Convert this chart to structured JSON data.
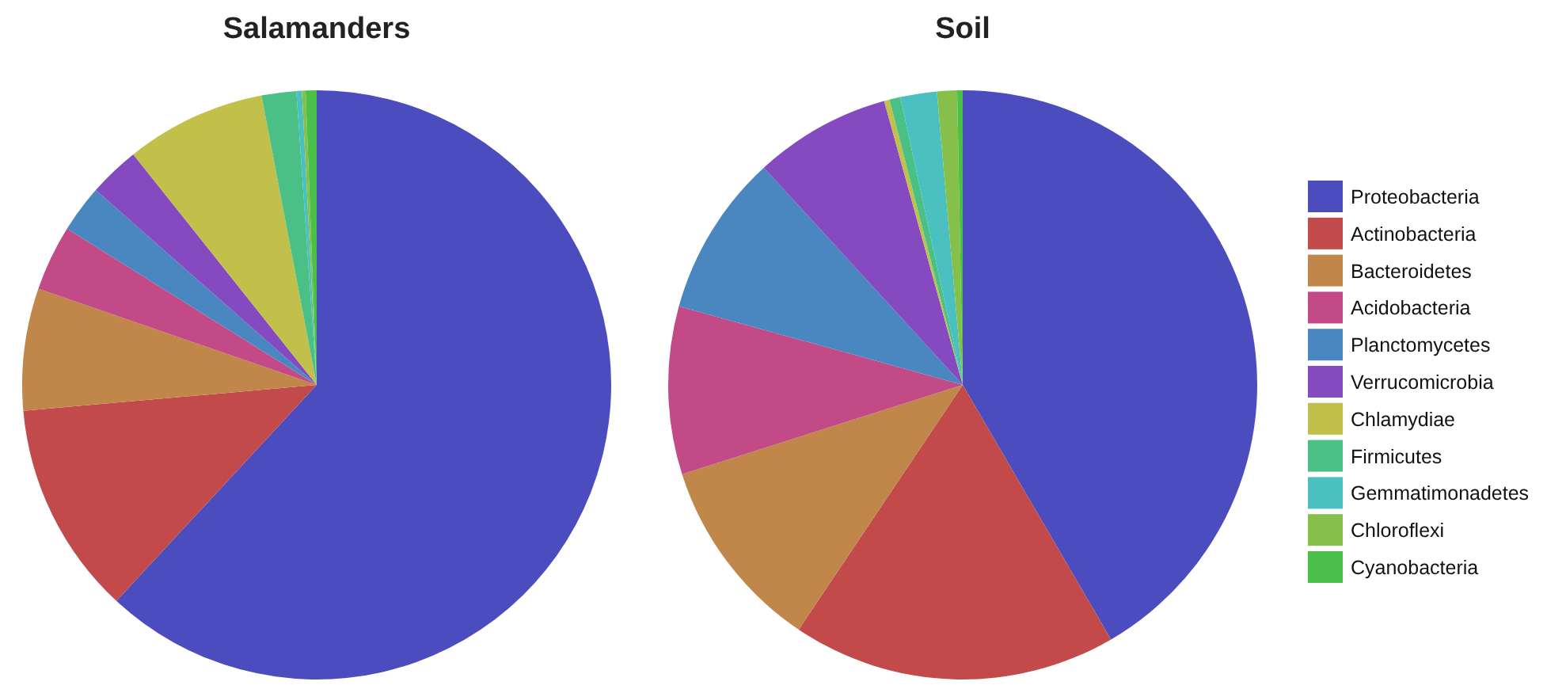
{
  "chart_data": [
    {
      "type": "pie",
      "title": "Salamanders",
      "legend": false,
      "values": [
        61.9,
        11.7,
        6.7,
        3.6,
        2.6,
        2.8,
        7.7,
        1.9,
        0.3,
        0.2,
        0.6
      ],
      "colors": [
        "#4b4dbf",
        "#c24a4a",
        "#c0864a",
        "#c24a86",
        "#4a86c0",
        "#864ac0",
        "#c0c04a",
        "#4ac086",
        "#4ac0c0",
        "#86c04a",
        "#4ac04a"
      ]
    },
    {
      "type": "pie",
      "title": "Soil",
      "legend": "right",
      "categories": [
        "Proteobacteria",
        "Actinobacteria",
        "Bacteroidetes",
        "Acidobacteria",
        "Planctomycetes",
        "Verrucomicrobia",
        "Chlamydiae",
        "Firmicutes",
        "Gemmatimonadetes",
        "Chloroflexi",
        "Cyanobacteria"
      ],
      "values": [
        41.6,
        17.8,
        10.7,
        9.2,
        8.9,
        7.5,
        0.3,
        0.6,
        2.0,
        1.1,
        0.3
      ],
      "colors": [
        "#4b4dbf",
        "#c24a4a",
        "#c0864a",
        "#c24a86",
        "#4a86c0",
        "#864ac0",
        "#c0c04a",
        "#4ac086",
        "#4ac0c0",
        "#86c04a",
        "#4ac04a"
      ]
    }
  ]
}
